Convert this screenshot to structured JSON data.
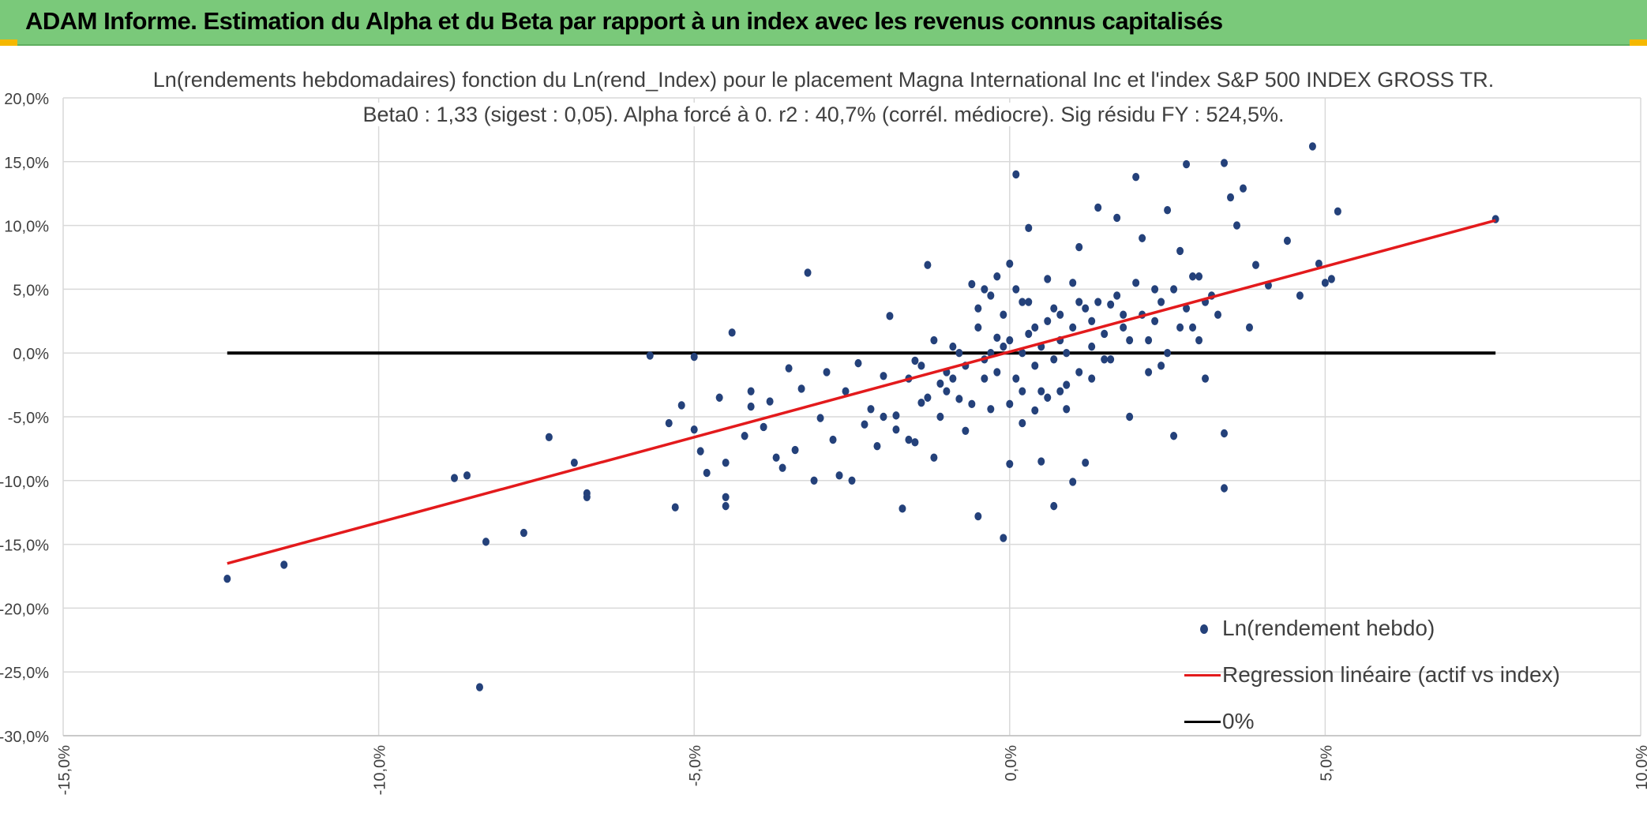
{
  "header": {
    "title": "ADAM Informe. Estimation du Alpha et du Beta par rapport à un index avec les revenus connus capitalisés"
  },
  "colors": {
    "header_bg": "#7ac97a",
    "points": "#24417a",
    "regression": "#e31a1c",
    "zero_line": "#000000",
    "grid": "#d9d9d9"
  },
  "chart_data": {
    "type": "scatter",
    "title": "Ln(rendements hebdomadaires) fonction du Ln(rend_Index) pour le placement Magna International Inc et l'index S&P 500 INDEX GROSS TR.",
    "subtitle": "Beta0 : 1,33 (sigest : 0,05). Alpha forcé à 0. r2 : 40,7% (corrél. médiocre). Sig résidu FY : 524,5%.",
    "xlabel": "",
    "ylabel": "",
    "xlim": [
      -0.15,
      0.1
    ],
    "ylim": [
      -0.3,
      0.2
    ],
    "x_ticks": [
      -0.15,
      -0.1,
      -0.05,
      0.0,
      0.05,
      0.1
    ],
    "x_tick_labels": [
      "-15,0%",
      "-10,0%",
      "-5,0%",
      "0,0%",
      "5,0%",
      "10,0%"
    ],
    "y_ticks": [
      0.2,
      0.15,
      0.1,
      0.05,
      0.0,
      -0.05,
      -0.1,
      -0.15,
      -0.2,
      -0.25,
      -0.3
    ],
    "y_tick_labels": [
      "20,0%",
      "15,0%",
      "10,0%",
      "5,0%",
      "0,0%",
      "-5,0%",
      "-10,0%",
      "-15,0%",
      "-20,0%",
      "-25,0%",
      "-30,0%"
    ],
    "grid": true,
    "legend_position": "bottom-right",
    "series": [
      {
        "name": "Ln(rendement hebdo)",
        "kind": "scatter",
        "points": [
          [
            -0.124,
            -0.177
          ],
          [
            -0.115,
            -0.166
          ],
          [
            -0.084,
            -0.262
          ],
          [
            -0.083,
            -0.148
          ],
          [
            -0.088,
            -0.098
          ],
          [
            -0.086,
            -0.096
          ],
          [
            -0.077,
            -0.141
          ],
          [
            -0.073,
            -0.066
          ],
          [
            -0.069,
            -0.086
          ],
          [
            -0.067,
            -0.11
          ],
          [
            -0.067,
            -0.113
          ],
          [
            -0.057,
            -0.002
          ],
          [
            -0.054,
            -0.055
          ],
          [
            -0.053,
            -0.121
          ],
          [
            -0.052,
            -0.041
          ],
          [
            -0.05,
            -0.003
          ],
          [
            -0.05,
            -0.06
          ],
          [
            -0.049,
            -0.077
          ],
          [
            -0.048,
            -0.094
          ],
          [
            -0.046,
            -0.035
          ],
          [
            -0.045,
            -0.12
          ],
          [
            -0.045,
            -0.113
          ],
          [
            -0.045,
            -0.086
          ],
          [
            -0.044,
            0.016
          ],
          [
            -0.042,
            -0.065
          ],
          [
            -0.041,
            -0.042
          ],
          [
            -0.041,
            -0.03
          ],
          [
            -0.039,
            -0.058
          ],
          [
            -0.038,
            -0.038
          ],
          [
            -0.037,
            -0.082
          ],
          [
            -0.036,
            -0.09
          ],
          [
            -0.035,
            -0.012
          ],
          [
            -0.034,
            -0.076
          ],
          [
            -0.033,
            -0.028
          ],
          [
            -0.032,
            0.063
          ],
          [
            -0.031,
            -0.1
          ],
          [
            -0.03,
            -0.051
          ],
          [
            -0.029,
            -0.015
          ],
          [
            -0.028,
            -0.068
          ],
          [
            -0.027,
            -0.096
          ],
          [
            -0.026,
            -0.03
          ],
          [
            -0.025,
            -0.1
          ],
          [
            -0.024,
            -0.008
          ],
          [
            -0.023,
            -0.056
          ],
          [
            -0.022,
            -0.044
          ],
          [
            -0.021,
            -0.073
          ],
          [
            -0.02,
            -0.018
          ],
          [
            -0.019,
            0.029
          ],
          [
            -0.018,
            -0.049
          ],
          [
            -0.017,
            -0.122
          ],
          [
            -0.016,
            -0.068
          ],
          [
            -0.015,
            -0.006
          ],
          [
            -0.014,
            -0.039
          ],
          [
            -0.013,
            0.069
          ],
          [
            -0.012,
            -0.082
          ],
          [
            -0.011,
            -0.024
          ],
          [
            -0.01,
            -0.015
          ],
          [
            -0.009,
            0.005
          ],
          [
            -0.008,
            -0.036
          ],
          [
            -0.007,
            -0.061
          ],
          [
            -0.006,
            0.054
          ],
          [
            -0.005,
            -0.128
          ],
          [
            -0.004,
            -0.02
          ],
          [
            -0.003,
            -0.044
          ],
          [
            -0.002,
            0.012
          ],
          [
            -0.001,
            -0.145
          ],
          [
            0.0,
            -0.087
          ],
          [
            0.001,
            0.14
          ],
          [
            0.002,
            -0.03
          ],
          [
            0.003,
            0.098
          ],
          [
            0.004,
            0.02
          ],
          [
            0.005,
            -0.085
          ],
          [
            0.006,
            0.058
          ],
          [
            0.007,
            -0.12
          ],
          [
            0.008,
            0.01
          ],
          [
            0.009,
            -0.044
          ],
          [
            0.01,
            -0.101
          ],
          [
            0.011,
            0.083
          ],
          [
            0.012,
            -0.086
          ],
          [
            0.013,
            0.025
          ],
          [
            0.014,
            0.114
          ],
          [
            0.015,
            -0.005
          ],
          [
            0.016,
            0.038
          ],
          [
            0.017,
            0.106
          ],
          [
            0.018,
            0.03
          ],
          [
            0.019,
            -0.05
          ],
          [
            0.02,
            0.138
          ],
          [
            0.021,
            0.09
          ],
          [
            0.022,
            0.01
          ],
          [
            0.023,
            0.05
          ],
          [
            0.024,
            -0.01
          ],
          [
            0.025,
            0.112
          ],
          [
            0.026,
            -0.065
          ],
          [
            0.027,
            0.08
          ],
          [
            0.028,
            0.148
          ],
          [
            0.029,
            0.02
          ],
          [
            0.03,
            0.06
          ],
          [
            0.031,
            -0.02
          ],
          [
            0.032,
            0.045
          ],
          [
            0.033,
            0.03
          ],
          [
            0.034,
            0.149
          ],
          [
            0.034,
            -0.106
          ],
          [
            0.034,
            -0.063
          ],
          [
            0.035,
            0.122
          ],
          [
            0.036,
            0.1
          ],
          [
            0.037,
            0.129
          ],
          [
            0.038,
            0.02
          ],
          [
            0.039,
            0.069
          ],
          [
            0.041,
            0.053
          ],
          [
            0.044,
            0.088
          ],
          [
            0.046,
            0.045
          ],
          [
            0.048,
            0.162
          ],
          [
            0.049,
            0.07
          ],
          [
            0.05,
            0.055
          ],
          [
            0.051,
            0.058
          ],
          [
            0.052,
            0.111
          ],
          [
            0.077,
            0.105
          ],
          [
            -0.02,
            -0.05
          ],
          [
            -0.018,
            -0.06
          ],
          [
            -0.016,
            -0.02
          ],
          [
            -0.015,
            -0.07
          ],
          [
            -0.014,
            -0.01
          ],
          [
            -0.013,
            -0.035
          ],
          [
            -0.012,
            0.01
          ],
          [
            -0.011,
            -0.05
          ],
          [
            -0.01,
            -0.03
          ],
          [
            -0.009,
            -0.02
          ],
          [
            -0.008,
            0.0
          ],
          [
            -0.007,
            -0.01
          ],
          [
            -0.006,
            -0.04
          ],
          [
            -0.005,
            0.02
          ],
          [
            -0.004,
            -0.005
          ],
          [
            -0.003,
            0.0
          ],
          [
            -0.002,
            -0.015
          ],
          [
            -0.001,
            0.005
          ],
          [
            0.0,
            0.01
          ],
          [
            0.001,
            -0.02
          ],
          [
            0.002,
            0.0
          ],
          [
            0.003,
            0.015
          ],
          [
            0.004,
            -0.01
          ],
          [
            0.005,
            0.005
          ],
          [
            0.006,
            0.025
          ],
          [
            0.007,
            -0.005
          ],
          [
            0.008,
            0.03
          ],
          [
            0.009,
            0.0
          ],
          [
            0.01,
            0.02
          ],
          [
            0.011,
            -0.015
          ],
          [
            0.012,
            0.035
          ],
          [
            0.013,
            0.005
          ],
          [
            0.014,
            0.04
          ],
          [
            0.015,
            0.015
          ],
          [
            0.016,
            -0.005
          ],
          [
            0.017,
            0.045
          ],
          [
            0.018,
            0.02
          ],
          [
            0.019,
            0.01
          ],
          [
            0.02,
            0.055
          ],
          [
            0.021,
            0.03
          ],
          [
            0.022,
            -0.015
          ],
          [
            0.023,
            0.025
          ],
          [
            0.024,
            0.04
          ],
          [
            0.025,
            0.0
          ],
          [
            0.026,
            0.05
          ],
          [
            0.027,
            0.02
          ],
          [
            0.028,
            0.035
          ],
          [
            0.029,
            0.06
          ],
          [
            0.03,
            0.01
          ],
          [
            0.031,
            0.04
          ],
          [
            -0.005,
            0.035
          ],
          [
            -0.003,
            0.045
          ],
          [
            -0.001,
            0.03
          ],
          [
            0.001,
            0.05
          ],
          [
            0.003,
            0.04
          ],
          [
            0.005,
            -0.03
          ],
          [
            0.007,
            0.035
          ],
          [
            0.009,
            -0.025
          ],
          [
            0.011,
            0.04
          ],
          [
            0.013,
            -0.02
          ],
          [
            0.0,
            -0.04
          ],
          [
            0.002,
            -0.055
          ],
          [
            0.004,
            -0.045
          ],
          [
            0.006,
            -0.035
          ],
          [
            0.008,
            -0.03
          ],
          [
            -0.002,
            0.06
          ],
          [
            0.0,
            0.07
          ],
          [
            0.002,
            0.04
          ],
          [
            -0.004,
            0.05
          ],
          [
            0.01,
            0.055
          ]
        ]
      },
      {
        "name": "Regression linéaire (actif vs index)",
        "kind": "line",
        "points": [
          [
            -0.124,
            -0.165
          ],
          [
            0.077,
            0.104
          ]
        ]
      },
      {
        "name": "0%",
        "kind": "line",
        "points": [
          [
            -0.124,
            0.0
          ],
          [
            0.077,
            0.0
          ]
        ]
      }
    ]
  }
}
